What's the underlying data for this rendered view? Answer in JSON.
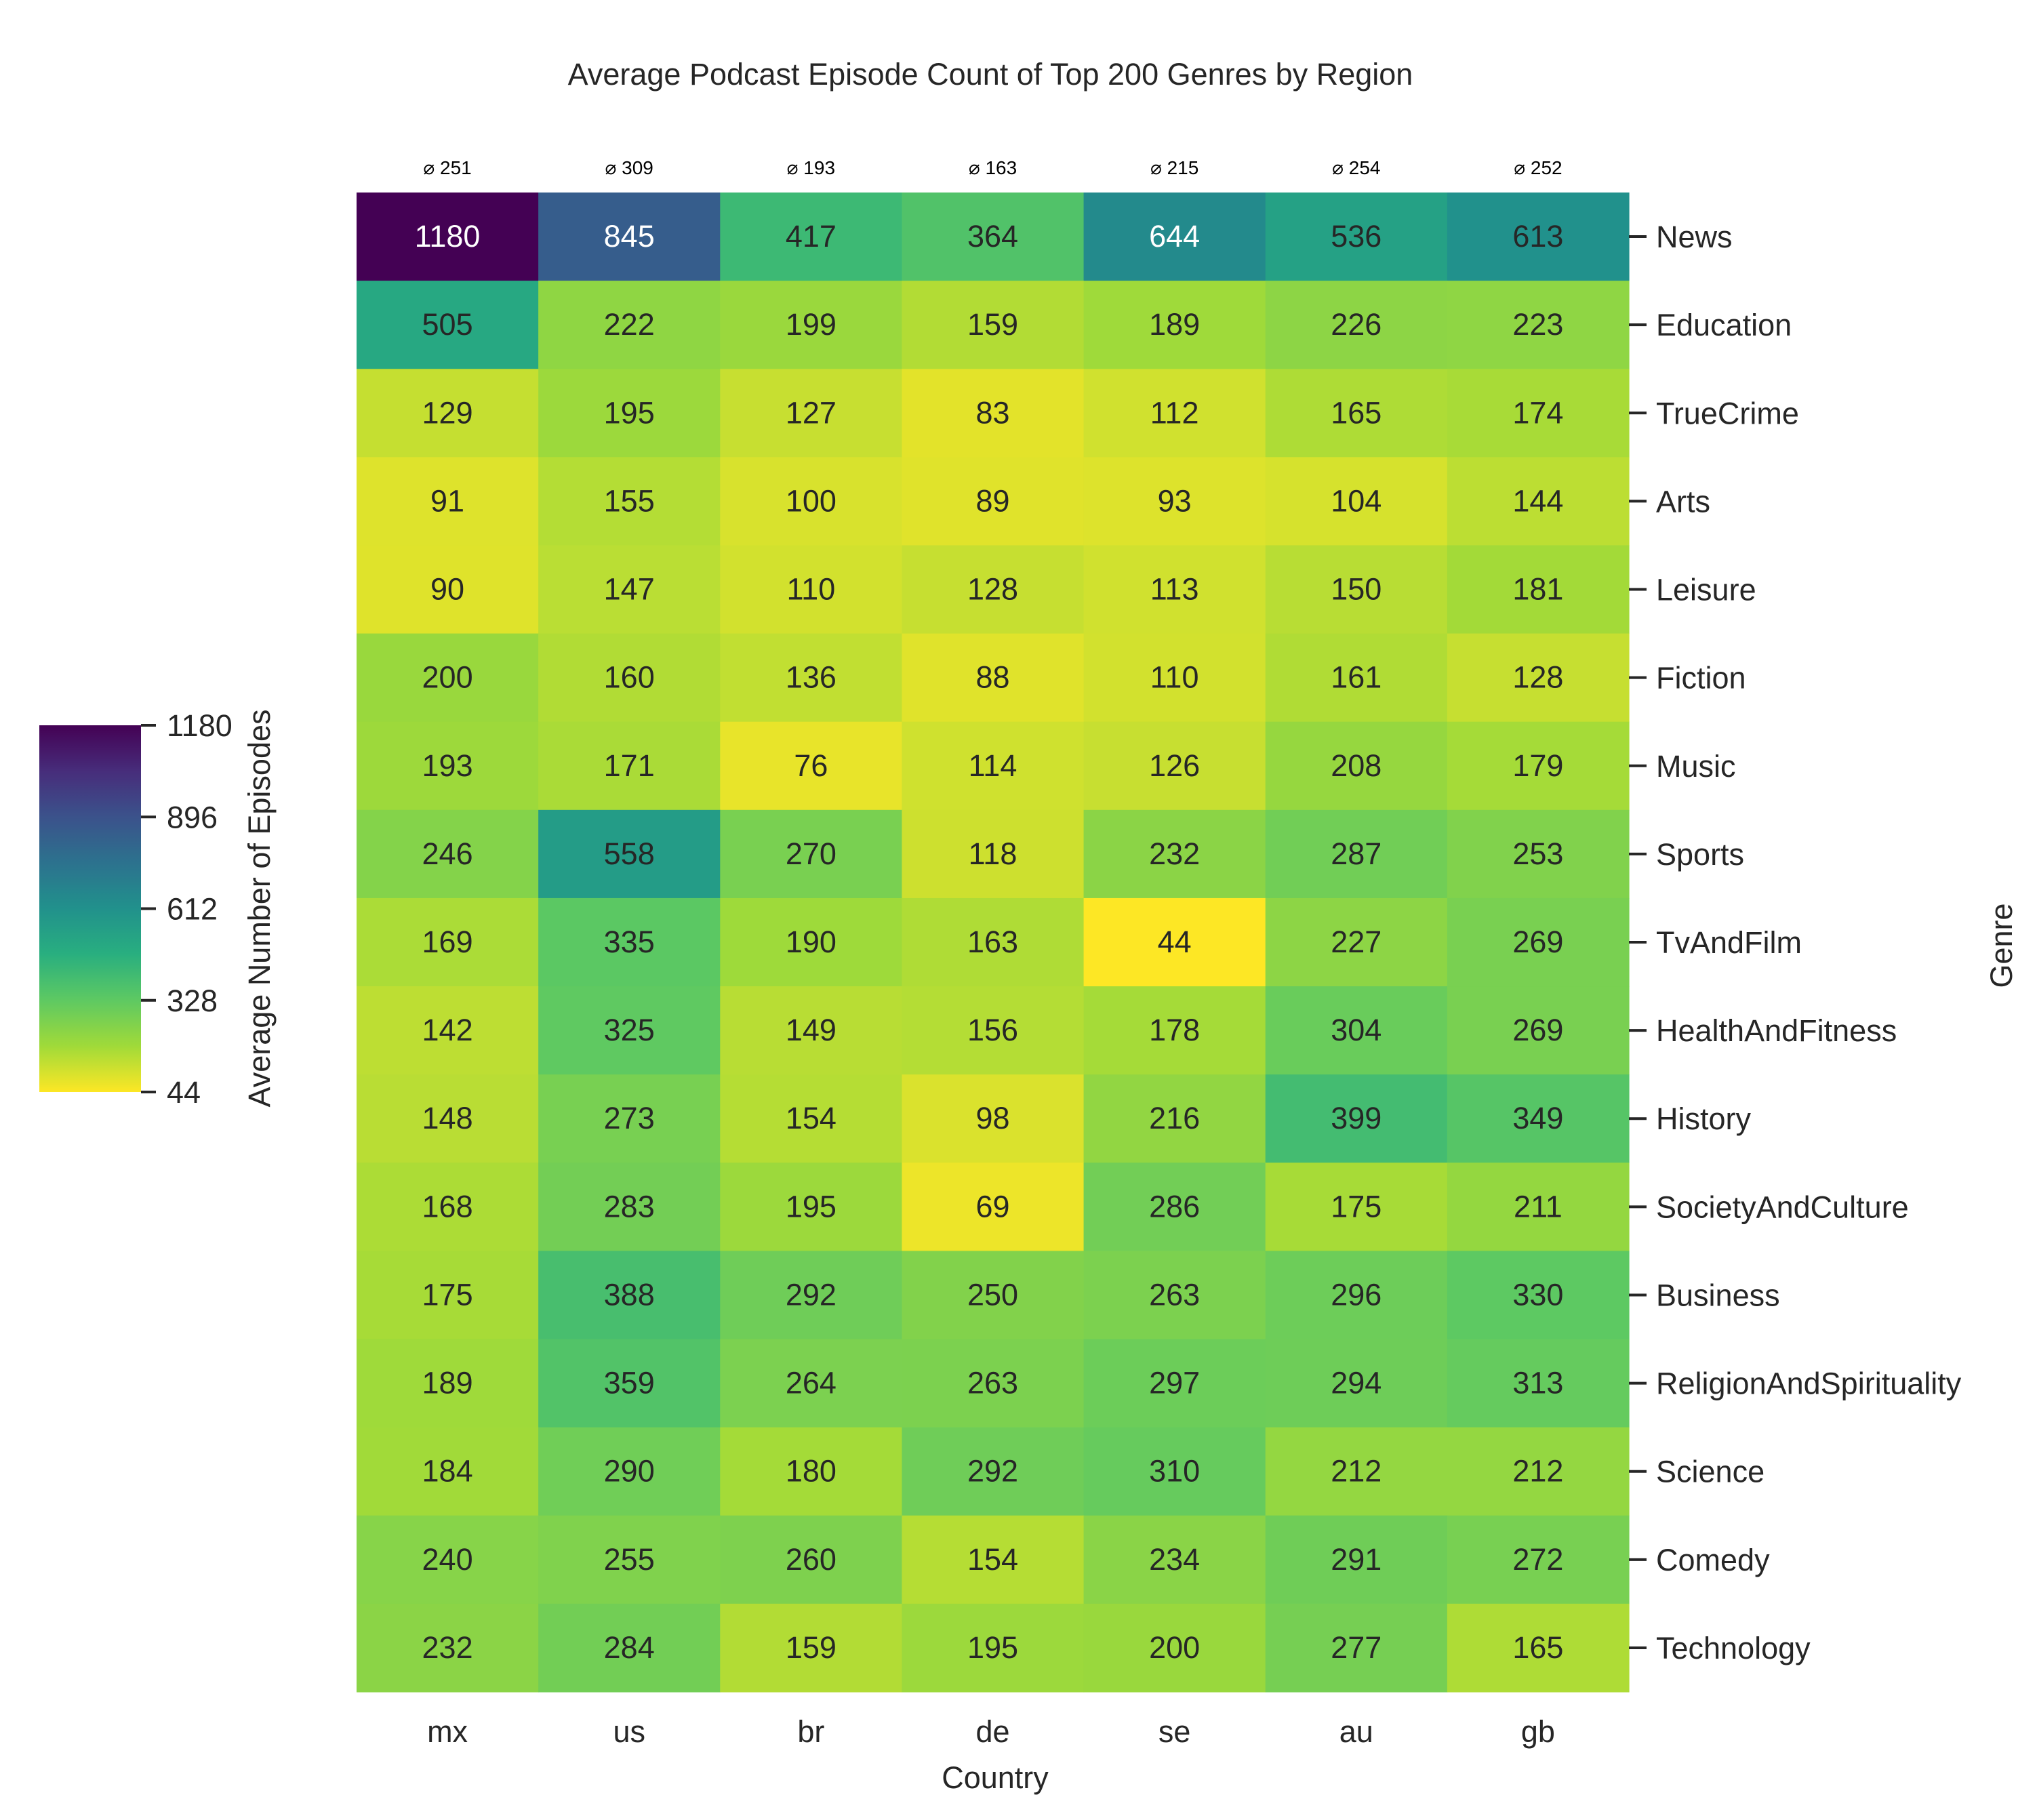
{
  "chart_data": {
    "type": "heatmap",
    "title": "Average Podcast Episode Count of Top 200 Genres by Region",
    "xlabel": "Country",
    "ylabel": "Genre",
    "colorbar_label": "Average Number of Episodes",
    "colormap": "viridis_r",
    "colorbar_ticks": [
      1180,
      896,
      612,
      328,
      44
    ],
    "value_range": [
      44,
      1180
    ],
    "x_categories": [
      "mx",
      "us",
      "br",
      "de",
      "se",
      "au",
      "gb"
    ],
    "column_means": [
      "⌀ 251",
      "⌀ 309",
      "⌀ 193",
      "⌀ 163",
      "⌀ 215",
      "⌀ 254",
      "⌀ 252"
    ],
    "y_categories": [
      "News",
      "Education",
      "TrueCrime",
      "Arts",
      "Leisure",
      "Fiction",
      "Music",
      "Sports",
      "TvAndFilm",
      "HealthAndFitness",
      "History",
      "SocietyAndCulture",
      "Business",
      "ReligionAndSpirituality",
      "Science",
      "Comedy",
      "Technology"
    ],
    "values": [
      [
        1180,
        845,
        417,
        364,
        644,
        536,
        613
      ],
      [
        505,
        222,
        199,
        159,
        189,
        226,
        223
      ],
      [
        129,
        195,
        127,
        83,
        112,
        165,
        174
      ],
      [
        91,
        155,
        100,
        89,
        93,
        104,
        144
      ],
      [
        90,
        147,
        110,
        128,
        113,
        150,
        181
      ],
      [
        200,
        160,
        136,
        88,
        110,
        161,
        128
      ],
      [
        193,
        171,
        76,
        114,
        126,
        208,
        179
      ],
      [
        246,
        558,
        270,
        118,
        232,
        287,
        253
      ],
      [
        169,
        335,
        190,
        163,
        44,
        227,
        269
      ],
      [
        142,
        325,
        149,
        156,
        178,
        304,
        269
      ],
      [
        148,
        273,
        154,
        98,
        216,
        399,
        349
      ],
      [
        168,
        283,
        195,
        69,
        286,
        175,
        211
      ],
      [
        175,
        388,
        292,
        250,
        263,
        296,
        330
      ],
      [
        189,
        359,
        264,
        263,
        297,
        294,
        313
      ],
      [
        184,
        290,
        180,
        292,
        310,
        212,
        212
      ],
      [
        240,
        255,
        260,
        154,
        234,
        291,
        272
      ],
      [
        232,
        284,
        159,
        195,
        200,
        277,
        165
      ]
    ]
  }
}
